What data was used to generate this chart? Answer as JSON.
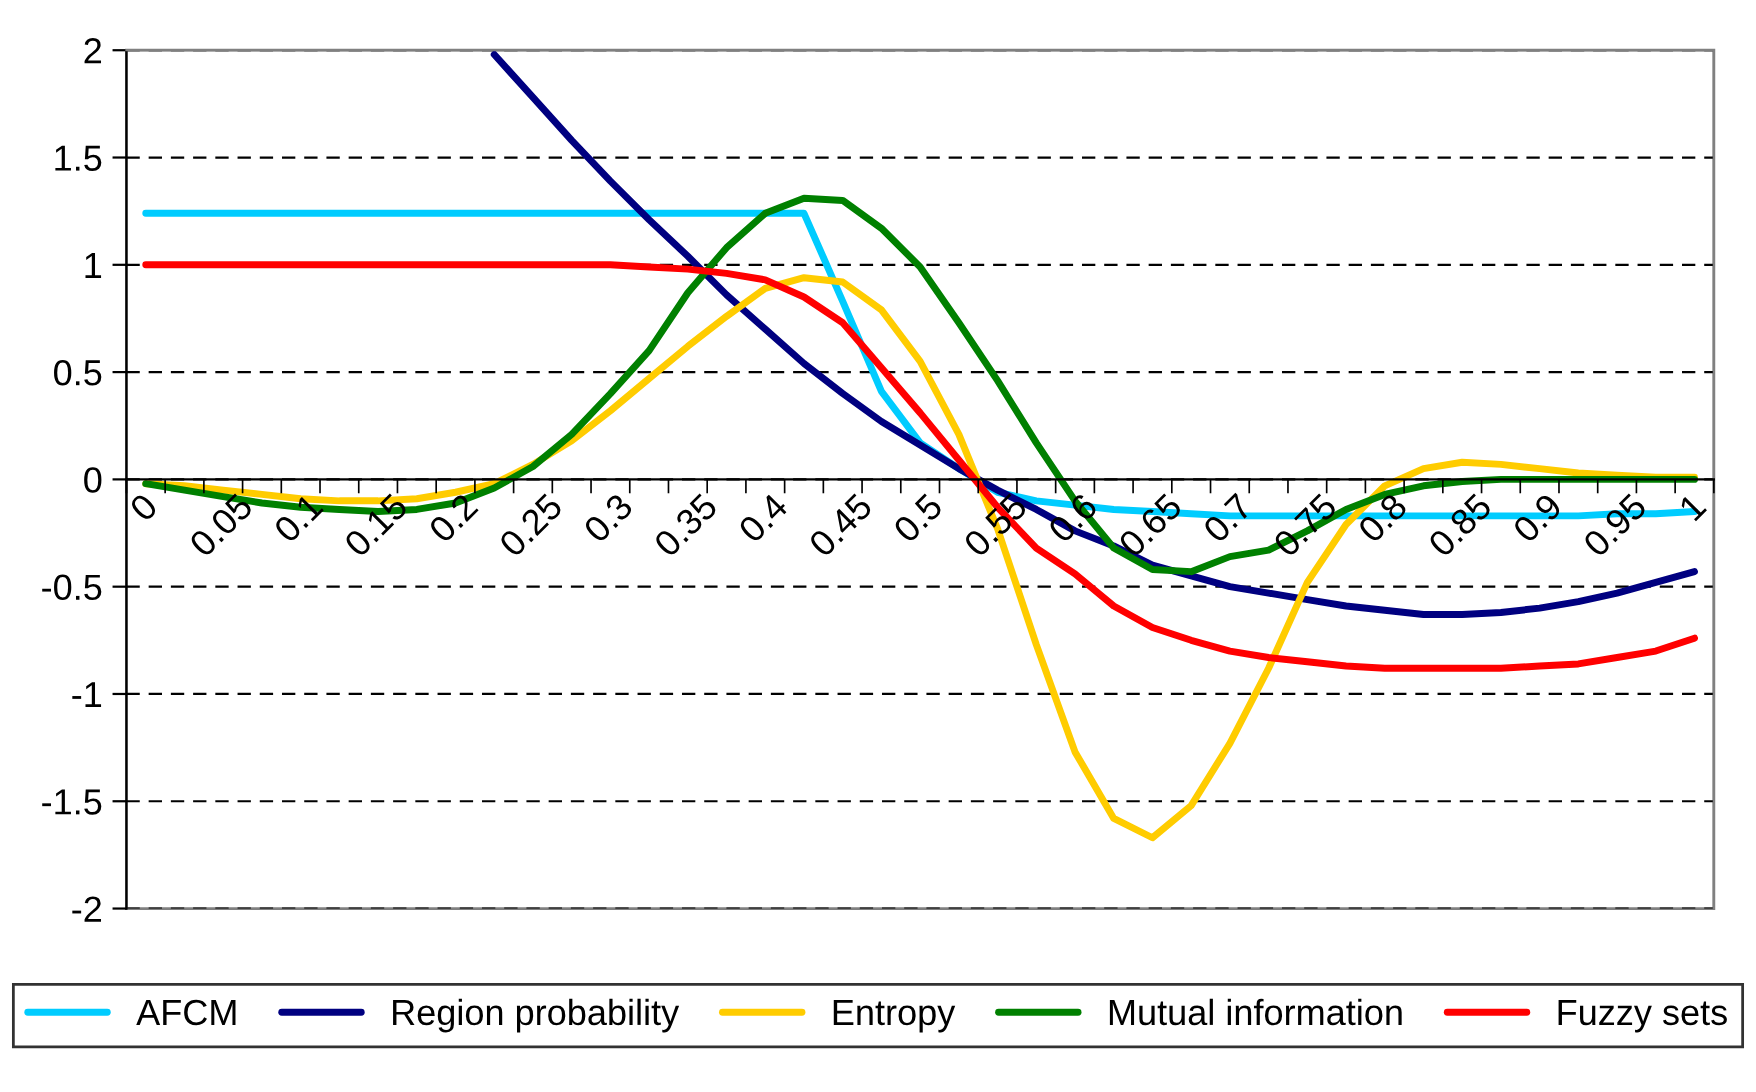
{
  "chart_data": {
    "type": "line",
    "categories": [
      "0",
      null,
      "0.05",
      null,
      "0.1",
      null,
      "0.15",
      null,
      "0.2",
      null,
      "0.25",
      null,
      "0.3",
      null,
      "0.35",
      null,
      "0.4",
      null,
      "0.45",
      null,
      "0.5",
      null,
      "0.55",
      null,
      "0.6",
      null,
      "0.65",
      null,
      "0.7",
      null,
      "0.75",
      null,
      "0.8",
      null,
      "0.85",
      null,
      "0.9",
      null,
      "0.95",
      null,
      "1"
    ],
    "series": [
      {
        "name": "AFCM",
        "color": "#00ccff",
        "values": [
          1.24,
          1.24,
          1.24,
          1.24,
          1.24,
          1.24,
          1.24,
          1.24,
          1.24,
          1.24,
          1.24,
          1.24,
          1.24,
          1.24,
          1.24,
          1.24,
          1.24,
          1.24,
          0.83,
          0.41,
          0.17,
          0.05,
          -0.06,
          -0.1,
          -0.12,
          -0.14,
          -0.15,
          -0.16,
          -0.17,
          -0.17,
          -0.17,
          -0.17,
          -0.17,
          -0.17,
          -0.17,
          -0.17,
          -0.17,
          -0.17,
          -0.16,
          -0.16,
          -0.15
        ]
      },
      {
        "name": "Region probability",
        "color": "#000080",
        "values": [
          null,
          null,
          null,
          null,
          null,
          null,
          null,
          null,
          null,
          1.98,
          1.78,
          1.58,
          1.39,
          1.21,
          1.04,
          0.86,
          0.7,
          0.54,
          0.4,
          0.27,
          0.16,
          0.05,
          -0.05,
          -0.14,
          -0.24,
          -0.31,
          -0.4,
          -0.45,
          -0.5,
          -0.53,
          -0.56,
          -0.59,
          -0.61,
          -0.63,
          -0.63,
          -0.62,
          -0.6,
          -0.57,
          -0.53,
          -0.48,
          -0.43
        ]
      },
      {
        "name": "Entropy",
        "color": "#ffcc00",
        "values": [
          -0.02,
          -0.03,
          -0.05,
          -0.07,
          -0.09,
          -0.1,
          -0.1,
          -0.09,
          -0.06,
          -0.02,
          0.07,
          0.18,
          0.32,
          0.47,
          0.62,
          0.76,
          0.89,
          0.94,
          0.92,
          0.79,
          0.55,
          0.21,
          -0.23,
          -0.77,
          -1.27,
          -1.58,
          -1.67,
          -1.52,
          -1.23,
          -0.88,
          -0.48,
          -0.21,
          -0.03,
          0.05,
          0.08,
          0.07,
          0.05,
          0.03,
          0.02,
          0.01,
          0.01
        ]
      },
      {
        "name": "Mutual information",
        "color": "#008000",
        "values": [
          -0.02,
          -0.05,
          -0.08,
          -0.11,
          -0.13,
          -0.14,
          -0.15,
          -0.14,
          -0.11,
          -0.04,
          0.06,
          0.21,
          0.4,
          0.6,
          0.87,
          1.08,
          1.24,
          1.31,
          1.3,
          1.17,
          0.99,
          0.73,
          0.46,
          0.17,
          -0.1,
          -0.32,
          -0.42,
          -0.43,
          -0.36,
          -0.33,
          -0.24,
          -0.14,
          -0.07,
          -0.03,
          -0.01,
          0,
          0,
          0,
          0,
          0,
          0
        ]
      },
      {
        "name": "Fuzzy sets",
        "color": "#ff0000",
        "values": [
          1,
          1,
          1,
          1,
          1,
          1,
          1,
          1,
          1,
          1,
          1,
          1,
          1,
          0.99,
          0.98,
          0.96,
          0.93,
          0.85,
          0.73,
          0.52,
          0.31,
          0.09,
          -0.13,
          -0.32,
          -0.44,
          -0.59,
          -0.69,
          -0.75,
          -0.8,
          -0.83,
          -0.85,
          -0.87,
          -0.88,
          -0.88,
          -0.88,
          -0.88,
          -0.87,
          -0.86,
          -0.83,
          -0.8,
          -0.74
        ]
      }
    ],
    "ylim": [
      -2,
      2
    ],
    "yticks": [
      -2,
      -1.5,
      -1,
      -0.5,
      0,
      0.5,
      1,
      1.5,
      2
    ],
    "grid": "y",
    "legend": "bottom",
    "marker": "none",
    "line_style": "solid"
  }
}
